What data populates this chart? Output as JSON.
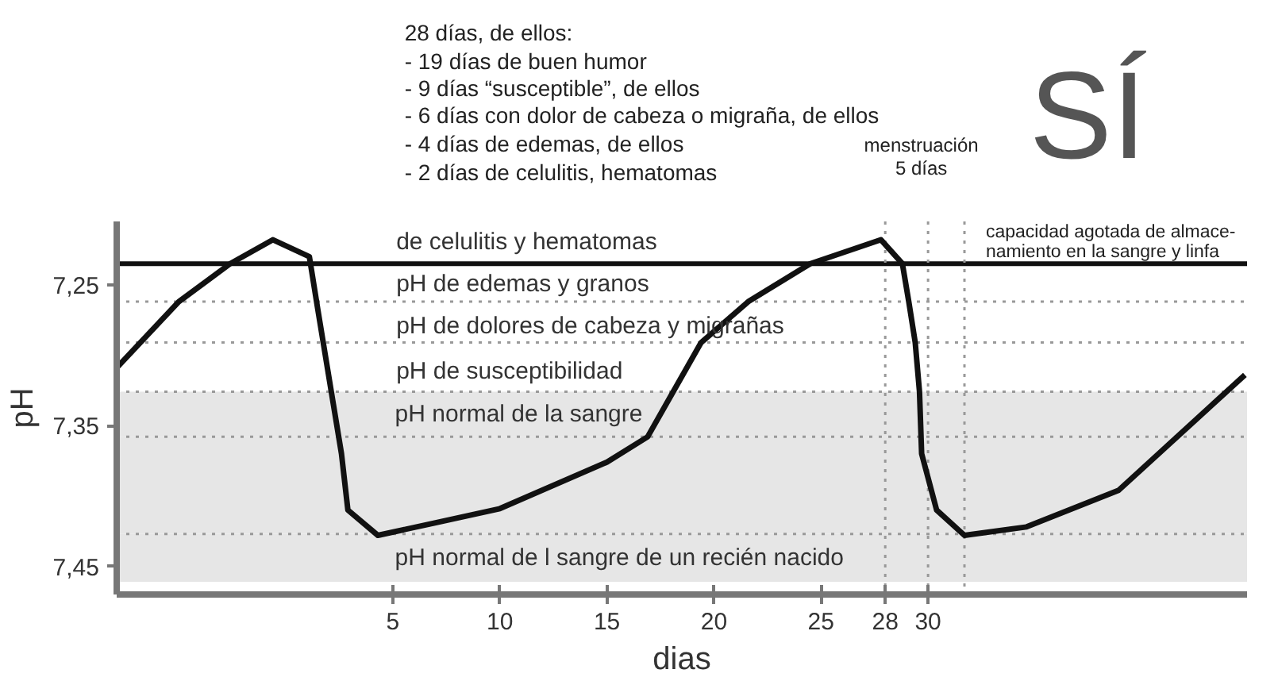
{
  "chart_data": {
    "type": "line",
    "xlabel": "dias",
    "ylabel": "pH",
    "x": [
      -7.9,
      -5,
      -2.6,
      -0.6,
      1.1,
      1.5,
      2.6,
      2.9,
      4.3,
      7,
      10,
      15,
      16.9,
      19.4,
      21.6,
      24.5,
      27.8,
      28.8,
      29.1,
      29.4,
      29.6,
      29.7,
      30.4,
      31.7,
      34.6,
      38.9,
      44.8
    ],
    "series": [
      {
        "color": "#111111",
        "values": [
          7.309,
          7.262,
          7.235,
          7.218,
          7.23,
          7.268,
          7.37,
          7.41,
          7.428,
          7.419,
          7.409,
          7.376,
          7.358,
          7.291,
          7.262,
          7.235,
          7.218,
          7.235,
          7.262,
          7.291,
          7.326,
          7.37,
          7.41,
          7.428,
          7.422,
          7.396,
          7.314
        ]
      }
    ],
    "xlim": [
      -7.9,
      44.9
    ],
    "ylim": [
      7.47,
      7.205
    ],
    "xticks": [
      5,
      10,
      15,
      20,
      25,
      28,
      30
    ],
    "yticks": [
      {
        "value": 7.25,
        "label": "7,25"
      },
      {
        "value": 7.35,
        "label": "7,35"
      },
      {
        "value": 7.45,
        "label": "7,45"
      }
    ],
    "grid": false,
    "marker": "none",
    "line_style": "solid",
    "bands": [
      {
        "axis": "y",
        "from": 7.326,
        "to": 7.358,
        "label": "pH normal de la sangre",
        "color": "#e6e6e6"
      },
      {
        "axis": "y",
        "from": 7.358,
        "to": 7.427,
        "color": "#e6e6e6"
      },
      {
        "axis": "y",
        "from": 7.427,
        "to": 7.461,
        "label": "pH normal de l sangre de un recién nacido",
        "color": "#e6e6e6"
      }
    ],
    "ref_lines": [
      {
        "axis": "y",
        "value": 7.235,
        "color": "#111111",
        "line_style": "solid"
      },
      {
        "axis": "y",
        "value": 7.262,
        "color": "#999999",
        "line_style": "dotted"
      },
      {
        "axis": "y",
        "value": 7.291,
        "color": "#999999",
        "line_style": "dotted"
      },
      {
        "axis": "y",
        "value": 7.326,
        "color": "#999999",
        "line_style": "dotted"
      },
      {
        "axis": "y",
        "value": 7.358,
        "color": "#999999",
        "line_style": "dotted"
      },
      {
        "axis": "y",
        "value": 7.427,
        "color": "#999999",
        "line_style": "dotted"
      },
      {
        "axis": "x",
        "value": 28,
        "color": "#999999",
        "line_style": "dotted"
      },
      {
        "axis": "x",
        "value": 30,
        "color": "#999999",
        "line_style": "dotted"
      },
      {
        "axis": "x",
        "value": 31.7,
        "color": "#999999",
        "line_style": "dotted"
      }
    ],
    "annotations": [
      "28 días, de ellos:",
      "-  19 días de buen humor",
      "-  9 días “susceptible”, de ellos",
      "-  6 días con dolor de cabeza o migraña, de ellos",
      "-  4 días de edemas, de ellos",
      "-  2 días de celulitis, hematomas",
      "menstruación\n5 días",
      "SÍ",
      "capacidad agotada de almace-\nnamiento en la sangre y linfa",
      "de celulitis y hematomas",
      "pH de edemas y granos",
      "pH de dolores de cabeza y migrañas",
      "pH de susceptibilidad"
    ]
  }
}
